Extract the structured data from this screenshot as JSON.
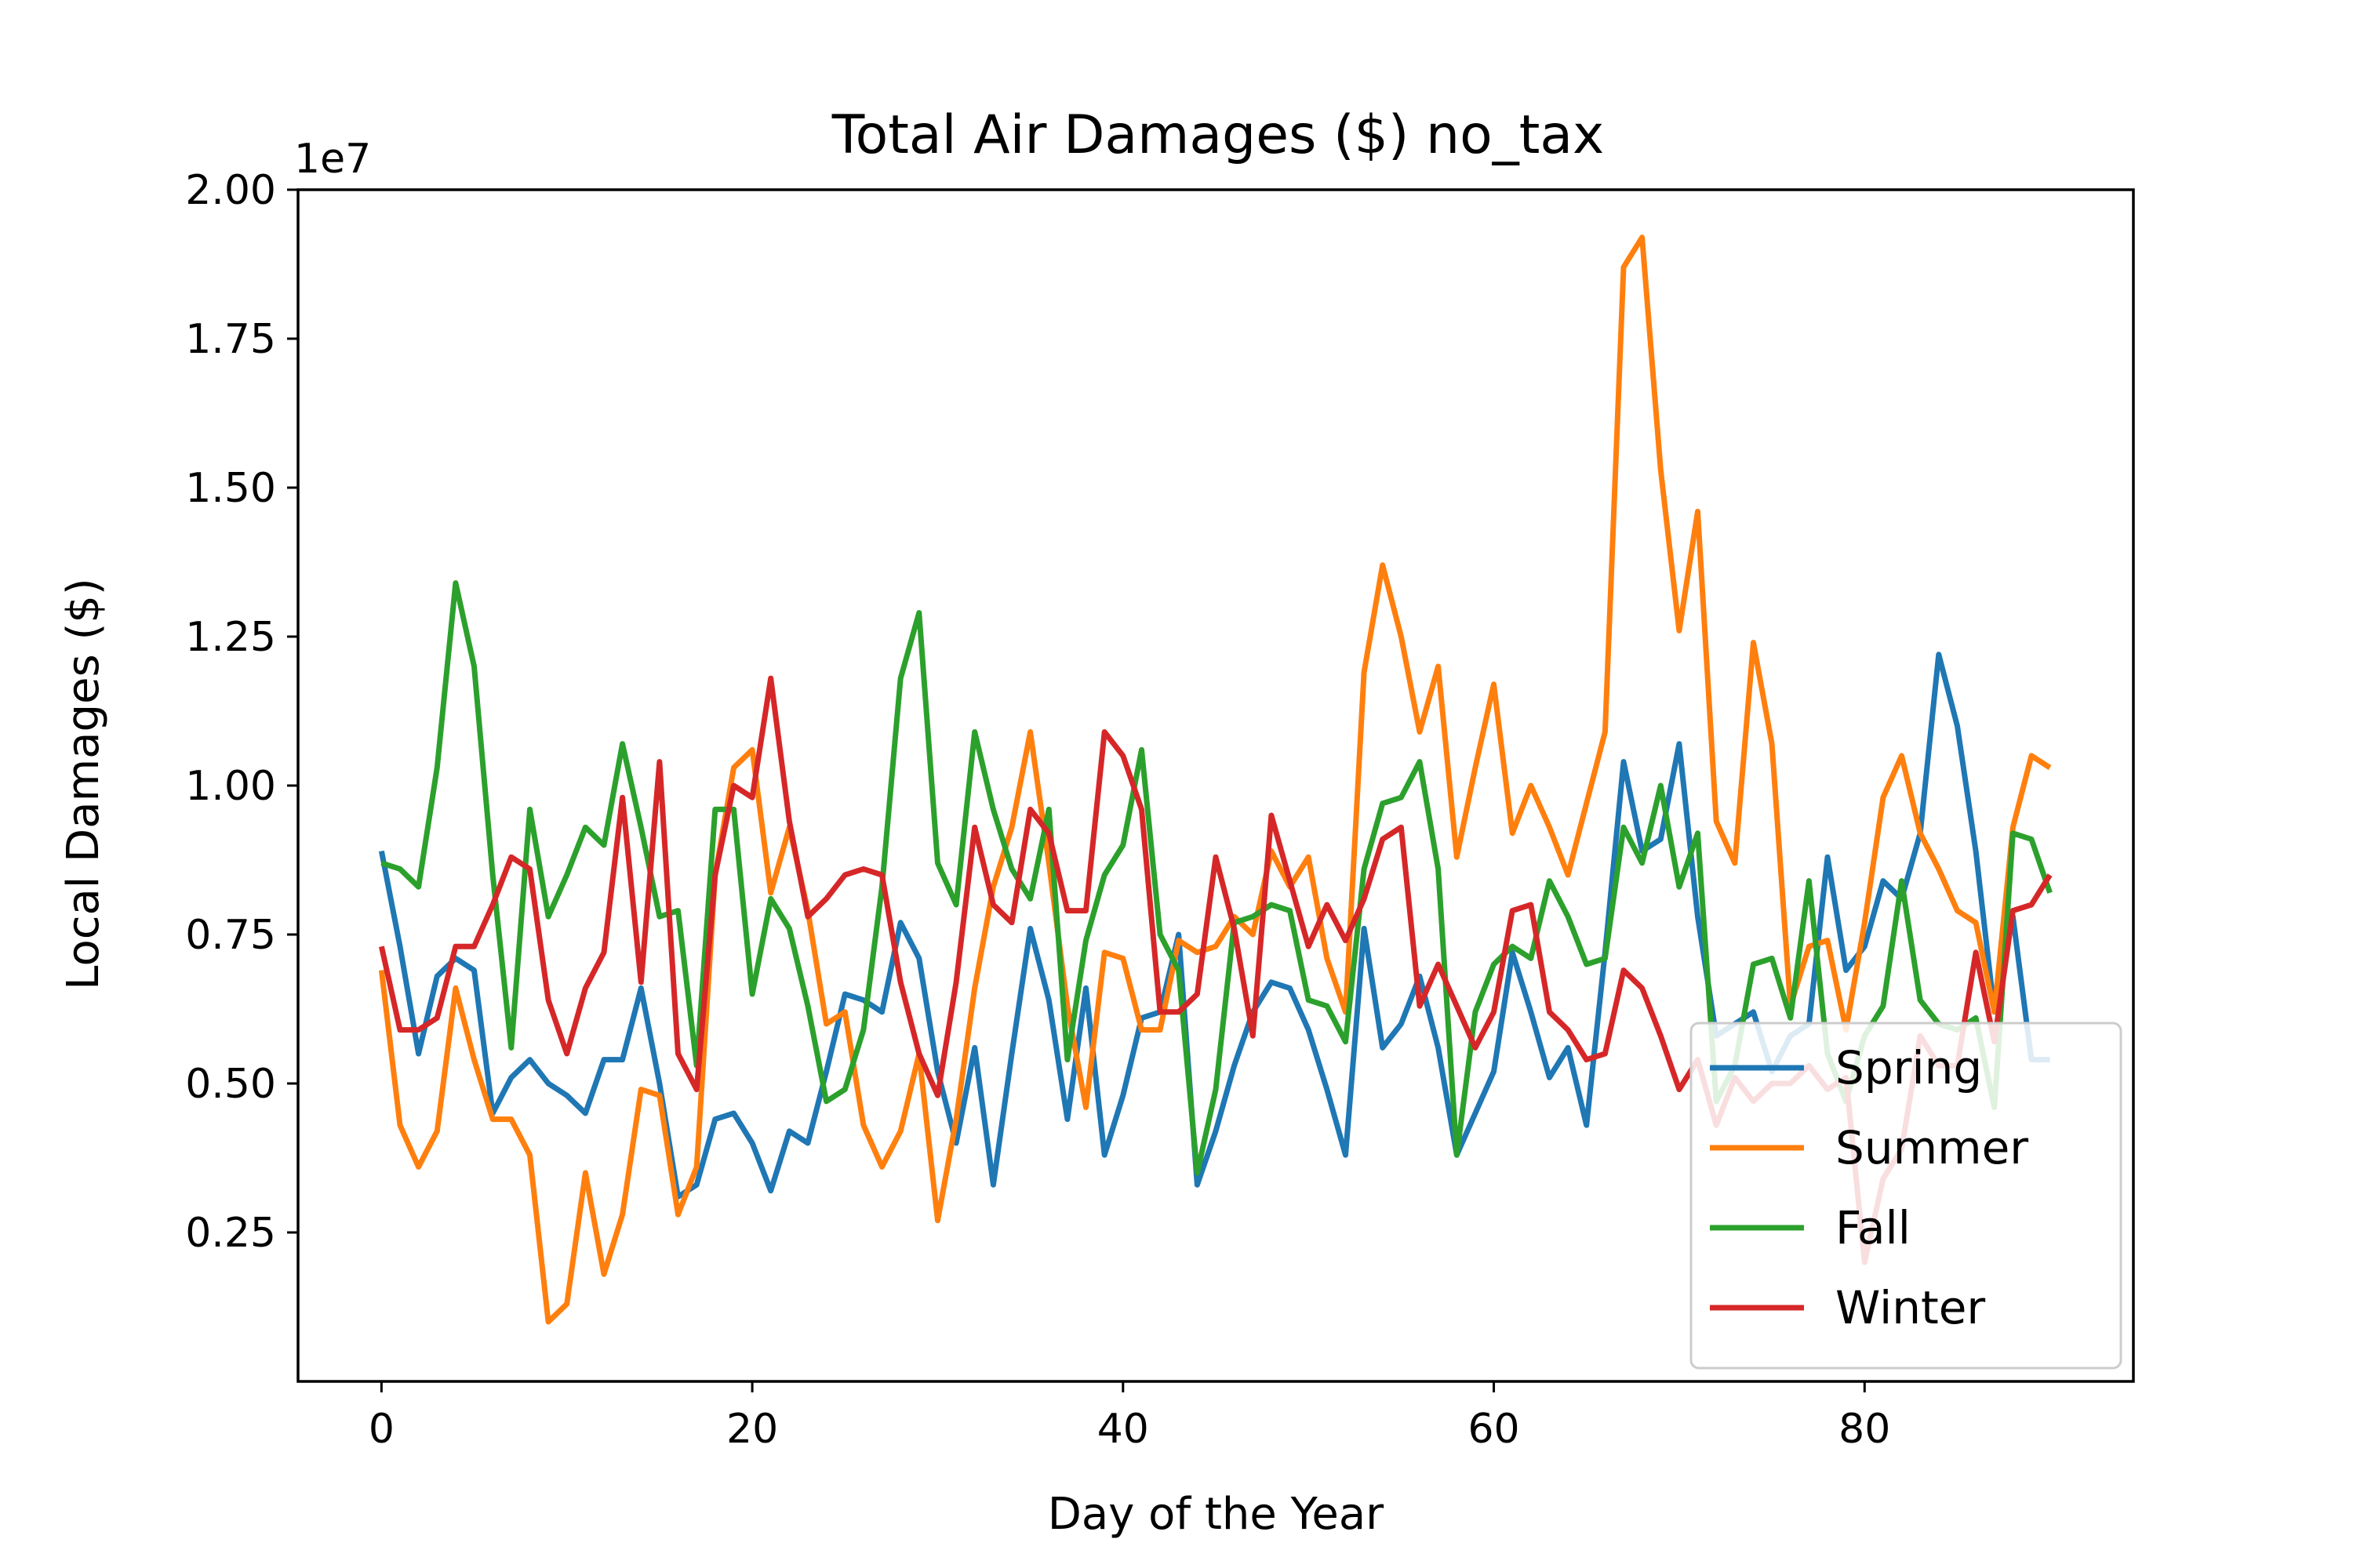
{
  "chart_data": {
    "type": "line",
    "title": "Total Air Damages ($) no_tax",
    "xlabel": "Day of the Year",
    "ylabel": "Local Damages ($)",
    "y_offset_label": "1e7",
    "xlim": [
      -4.5,
      94.5
    ],
    "ylim": [
      0.0,
      2.0
    ],
    "xticks": [
      0,
      20,
      40,
      60,
      80
    ],
    "xtick_labels": [
      "0",
      "20",
      "40",
      "60",
      "80"
    ],
    "yticks": [
      0.25,
      0.5,
      0.75,
      1.0,
      1.25,
      1.5,
      1.75,
      2.0
    ],
    "ytick_labels": [
      "0.25",
      "0.50",
      "0.75",
      "1.00",
      "1.25",
      "1.50",
      "1.75",
      "2.00"
    ],
    "grid": false,
    "legend_position": "bottom-right",
    "series": [
      {
        "name": "Spring",
        "color": "#1f77b4",
        "values": [
          0.89,
          0.73,
          0.55,
          0.68,
          0.71,
          0.69,
          0.45,
          0.51,
          0.54,
          0.5,
          0.48,
          0.45,
          0.54,
          0.54,
          0.66,
          0.5,
          0.31,
          0.33,
          0.44,
          0.45,
          0.4,
          0.32,
          0.42,
          0.4,
          0.52,
          0.65,
          0.64,
          0.62,
          0.77,
          0.71,
          0.52,
          0.4,
          0.56,
          0.33,
          0.55,
          0.76,
          0.64,
          0.44,
          0.66,
          0.38,
          0.48,
          0.61,
          0.62,
          0.75,
          0.33,
          0.42,
          0.53,
          0.62,
          0.67,
          0.66,
          0.59,
          0.49,
          0.38,
          0.76,
          0.56,
          0.6,
          0.68,
          0.56,
          0.38,
          0.45,
          0.52,
          0.72,
          0.62,
          0.51,
          0.56,
          0.43,
          0.72,
          1.04,
          0.89,
          0.91,
          1.07,
          0.78,
          0.58,
          0.6,
          0.62,
          0.52,
          0.58,
          0.6,
          0.88,
          0.69,
          0.73,
          0.84,
          0.81,
          0.92,
          1.22,
          1.1,
          0.89,
          0.62,
          0.78,
          0.54,
          0.54
        ]
      },
      {
        "name": "Summer",
        "color": "#ff7f0e",
        "values": [
          0.69,
          0.43,
          0.36,
          0.42,
          0.66,
          0.54,
          0.44,
          0.44,
          0.38,
          0.1,
          0.13,
          0.35,
          0.18,
          0.28,
          0.49,
          0.48,
          0.28,
          0.36,
          0.85,
          1.03,
          1.06,
          0.82,
          0.93,
          0.79,
          0.6,
          0.62,
          0.43,
          0.36,
          0.42,
          0.55,
          0.27,
          0.44,
          0.66,
          0.83,
          0.93,
          1.09,
          0.87,
          0.63,
          0.46,
          0.72,
          0.71,
          0.59,
          0.59,
          0.74,
          0.72,
          0.73,
          0.78,
          0.75,
          0.89,
          0.83,
          0.88,
          0.71,
          0.62,
          1.19,
          1.37,
          1.25,
          1.09,
          1.2,
          0.88,
          1.03,
          1.17,
          0.92,
          1.0,
          0.93,
          0.85,
          0.97,
          1.09,
          1.87,
          1.92,
          1.53,
          1.26,
          1.46,
          0.94,
          0.87,
          1.24,
          1.07,
          0.63,
          0.73,
          0.74,
          0.59,
          0.77,
          0.98,
          1.05,
          0.92,
          0.86,
          0.79,
          0.77,
          0.62,
          0.93,
          1.05,
          1.03
        ]
      },
      {
        "name": "Fall",
        "color": "#2ca02c",
        "values": [
          0.87,
          0.86,
          0.83,
          1.03,
          1.34,
          1.2,
          0.85,
          0.56,
          0.96,
          0.78,
          0.85,
          0.93,
          0.9,
          1.07,
          0.93,
          0.78,
          0.79,
          0.53,
          0.96,
          0.96,
          0.65,
          0.81,
          0.76,
          0.63,
          0.47,
          0.49,
          0.59,
          0.83,
          1.18,
          1.29,
          0.87,
          0.8,
          1.09,
          0.96,
          0.86,
          0.81,
          0.96,
          0.54,
          0.74,
          0.85,
          0.9,
          1.06,
          0.75,
          0.69,
          0.35,
          0.49,
          0.77,
          0.78,
          0.8,
          0.79,
          0.64,
          0.63,
          0.57,
          0.86,
          0.97,
          0.98,
          1.04,
          0.86,
          0.38,
          0.62,
          0.7,
          0.73,
          0.71,
          0.84,
          0.78,
          0.7,
          0.71,
          0.93,
          0.87,
          1.0,
          0.83,
          0.92,
          0.47,
          0.53,
          0.7,
          0.71,
          0.61,
          0.84,
          0.55,
          0.47,
          0.58,
          0.63,
          0.84,
          0.64,
          0.6,
          0.59,
          0.61,
          0.46,
          0.92,
          0.91,
          0.82
        ]
      },
      {
        "name": "Winter",
        "color": "#d62728",
        "values": [
          0.73,
          0.59,
          0.59,
          0.61,
          0.73,
          0.73,
          0.8,
          0.88,
          0.86,
          0.64,
          0.55,
          0.66,
          0.72,
          0.98,
          0.67,
          1.04,
          0.55,
          0.49,
          0.85,
          1.0,
          0.98,
          1.18,
          0.94,
          0.78,
          0.81,
          0.85,
          0.86,
          0.85,
          0.67,
          0.55,
          0.48,
          0.67,
          0.93,
          0.8,
          0.77,
          0.96,
          0.92,
          0.79,
          0.79,
          1.09,
          1.05,
          0.96,
          0.62,
          0.62,
          0.65,
          0.88,
          0.76,
          0.58,
          0.95,
          0.84,
          0.73,
          0.8,
          0.74,
          0.81,
          0.91,
          0.93,
          0.63,
          0.7,
          0.63,
          0.56,
          0.62,
          0.79,
          0.8,
          0.62,
          0.59,
          0.54,
          0.55,
          0.69,
          0.66,
          0.58,
          0.49,
          0.54,
          0.43,
          0.51,
          0.47,
          0.5,
          0.5,
          0.53,
          0.49,
          0.51,
          0.2,
          0.34,
          0.39,
          0.58,
          0.53,
          0.53,
          0.72,
          0.57,
          0.79,
          0.8,
          0.85
        ]
      }
    ]
  }
}
